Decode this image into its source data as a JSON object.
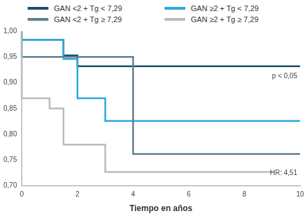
{
  "chart_data": {
    "type": "line",
    "x_label": "Tiempo en años",
    "x": [
      0,
      1,
      1.5,
      2,
      3,
      4,
      6,
      9,
      10
    ],
    "series": [
      {
        "name": "GAN <2 + Tg < 7,29",
        "color": "#1d4f6b",
        "values": [
          1,
          0.983,
          0.983,
          0.953,
          0.932,
          0.932,
          0.932,
          0.932,
          0.932
        ]
      },
      {
        "name": "GAN ≥2 + Tg < 7,29",
        "color": "#29a8df",
        "values": [
          1,
          0.983,
          0.983,
          0.946,
          0.87,
          0.826,
          0.826,
          0.826,
          0.826
        ]
      },
      {
        "name": "GAN <2 + Tg ≥ 7,29",
        "color": "#5f7f93",
        "values": [
          1,
          0.95,
          0.95,
          0.95,
          0.95,
          0.95,
          0.762,
          0.762,
          0.762
        ]
      },
      {
        "name": "GAN ≥2 + Tg ≥ 7,29",
        "color": "#b5bcc2",
        "values": [
          1,
          0.87,
          0.85,
          0.78,
          0.78,
          0.727,
          0.727,
          0.727,
          null
        ]
      }
    ],
    "xlim": [
      0,
      10
    ],
    "xticks": [
      0,
      2,
      4,
      6,
      8,
      10
    ],
    "ylim": [
      0.7,
      1.0
    ],
    "yticks": [
      {
        "value": 0.7,
        "label": "0,70"
      },
      {
        "value": 0.75,
        "label": "0,75"
      },
      {
        "value": 0.8,
        "label": "0,80"
      },
      {
        "value": 0.85,
        "label": "0,85"
      },
      {
        "value": 0.9,
        "label": "0,90"
      },
      {
        "value": 0.95,
        "label": "0,95"
      },
      {
        "value": 1.0,
        "label": "1,00"
      }
    ],
    "grid": false,
    "line_style": "step",
    "annotations": [
      {
        "text": "p < 0,05",
        "x": 9.9,
        "y": 0.912
      },
      {
        "text": "HR: 4,51",
        "x": 9.9,
        "y": 0.724
      }
    ]
  }
}
